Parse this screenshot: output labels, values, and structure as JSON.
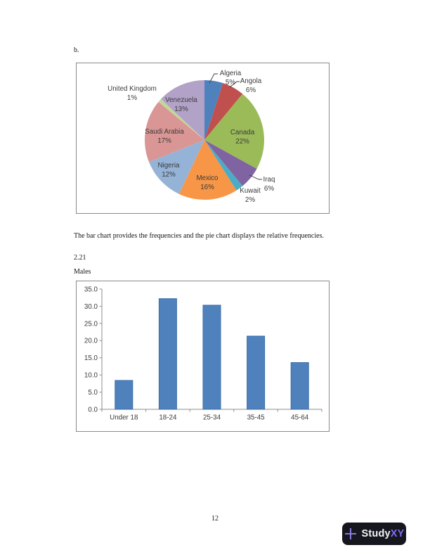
{
  "page": {
    "item_label": "b.",
    "body_text": "The bar chart provides the frequencies and the pie chart displays the relative frequencies.",
    "problem_number": "2.21",
    "chart_caption": "Males",
    "page_number": "12",
    "figure_border_color": "#8a8a8a"
  },
  "branding": {
    "logo_primary": "Study",
    "logo_accent": "XY",
    "badge_bg": "#16161f",
    "accent_color": "#7e6df2",
    "plus_color": "#9187ee"
  },
  "chart_data": [
    {
      "type": "pie",
      "title": "",
      "start_angle_deg": 0,
      "direction": "clockwise",
      "label_color": "#3b3b3b",
      "slices": [
        {
          "label": "Algeria",
          "value": 5,
          "pct_label": "5%",
          "color": "#4F81BD",
          "placement": "outside",
          "leader": true
        },
        {
          "label": "Angola",
          "value": 6,
          "pct_label": "6%",
          "color": "#C0504D",
          "placement": "outside",
          "leader": true
        },
        {
          "label": "Canada",
          "value": 22,
          "pct_label": "22%",
          "color": "#9BBB59",
          "placement": "inside",
          "leader": false
        },
        {
          "label": "Iraq",
          "value": 6,
          "pct_label": "6%",
          "color": "#8064A2",
          "placement": "outside",
          "leader": true
        },
        {
          "label": "Kuwait",
          "value": 2,
          "pct_label": "2%",
          "color": "#4BACC6",
          "placement": "outside",
          "leader": false
        },
        {
          "label": "Mexico",
          "value": 16,
          "pct_label": "16%",
          "color": "#F79646",
          "placement": "inside",
          "leader": false
        },
        {
          "label": "Nigeria",
          "value": 12,
          "pct_label": "12%",
          "color": "#95B3D7",
          "placement": "inside",
          "leader": false
        },
        {
          "label": "Saudi Arabia",
          "value": 17,
          "pct_label": "17%",
          "color": "#D99694",
          "placement": "inside",
          "leader": false
        },
        {
          "label": "United Kingdom",
          "value": 1,
          "pct_label": "1%",
          "color": "#C3D69B",
          "placement": "outside",
          "leader": false
        },
        {
          "label": "Venezuela",
          "value": 13,
          "pct_label": "13%",
          "color": "#B3A2C7",
          "placement": "inside",
          "leader": false
        }
      ]
    },
    {
      "type": "bar",
      "title": "Males",
      "categories": [
        "Under 18",
        "18-24",
        "25-34",
        "35-45",
        "45-64"
      ],
      "values": [
        8.4,
        32.2,
        30.3,
        21.3,
        13.6
      ],
      "xlabel": "",
      "ylabel": "",
      "ylim": [
        0,
        35
      ],
      "ytick_step": 5,
      "ytick_labels": [
        "0.0",
        "5.0",
        "10.0",
        "15.0",
        "20.0",
        "25.0",
        "30.0",
        "35.0"
      ],
      "grid": false,
      "legend": false,
      "bar_color": "#4F81BD",
      "bar_border_color": "#3C6DA8",
      "axis_color": "#8c8c8c",
      "label_color": "#3b3b3b"
    }
  ]
}
